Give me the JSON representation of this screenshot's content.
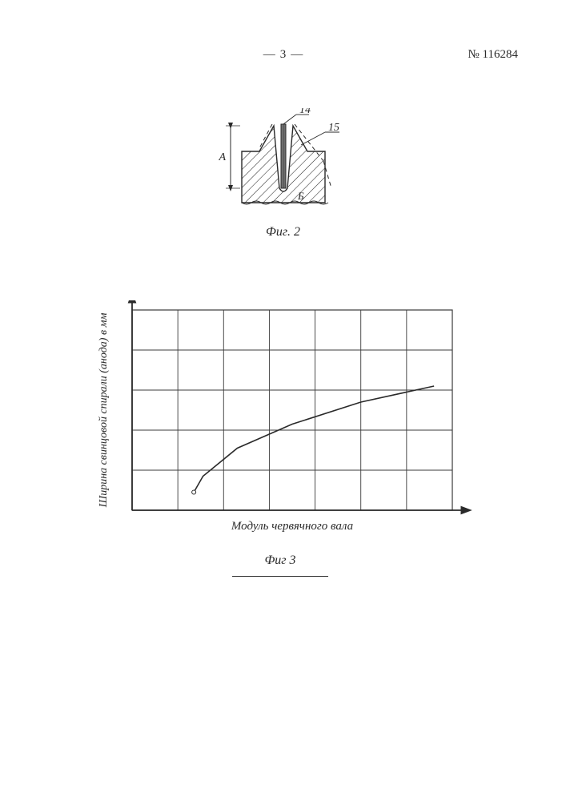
{
  "header": {
    "page_number": "3",
    "document_number": "№ 116284"
  },
  "fig2": {
    "label": "Фиг. 2",
    "callout_14": "14",
    "callout_15": "15",
    "dim_A": "A",
    "dim_B": "Б",
    "stroke_color": "#2a2a2a",
    "hatch_color": "#2a2a2a",
    "insert_fill": "#6d6d6d",
    "line_width": 1.4,
    "font_size": 14
  },
  "fig3": {
    "type": "line-chart",
    "label": "Фиг 3",
    "x_label": "Модуль червячного вала",
    "y_label": "Ширина свинцовой спирали (анода) в мм",
    "grid_cols": 7,
    "grid_rows": 5,
    "grid_color": "#3b3b3b",
    "axis_color": "#2a2a2a",
    "line_color": "#2a2a2a",
    "background_color": "#ffffff",
    "line_width": 1.6,
    "grid_width": 0.9,
    "axis_width": 1.8,
    "font_size": 15,
    "y_label_font_size": 14,
    "data_points": [
      {
        "gx": 1.35,
        "gy": 0.45
      },
      {
        "gx": 1.55,
        "gy": 0.85
      },
      {
        "gx": 2.3,
        "gy": 1.55
      },
      {
        "gx": 3.5,
        "gy": 2.15
      },
      {
        "gx": 5.0,
        "gy": 2.7
      },
      {
        "gx": 6.6,
        "gy": 3.1
      }
    ],
    "marker_radius": 2.5
  }
}
